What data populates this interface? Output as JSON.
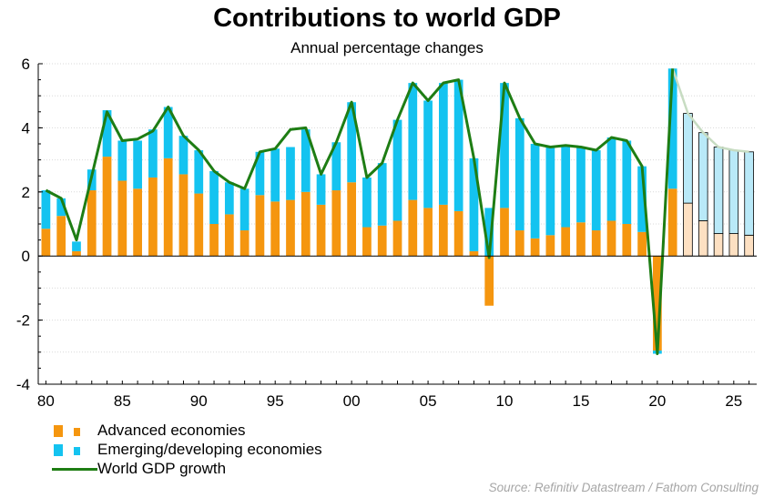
{
  "chart_data": {
    "type": "bar",
    "title": "Contributions to world GDP",
    "subtitle": "Annual percentage changes",
    "xlabel": "",
    "ylabel": "",
    "ylim": [
      -4,
      6
    ],
    "y_ticks": [
      "6",
      "4",
      "2",
      "0",
      "-2",
      "-4"
    ],
    "x_ticks": [
      "80",
      "85",
      "90",
      "95",
      "00",
      "05",
      "10",
      "15",
      "20",
      "25"
    ],
    "x": [
      1980,
      1981,
      1982,
      1983,
      1984,
      1985,
      1986,
      1987,
      1988,
      1989,
      1990,
      1991,
      1992,
      1993,
      1994,
      1995,
      1996,
      1997,
      1998,
      1999,
      2000,
      2001,
      2002,
      2003,
      2004,
      2005,
      2006,
      2007,
      2008,
      2009,
      2010,
      2011,
      2012,
      2013,
      2014,
      2015,
      2016,
      2017,
      2018,
      2019,
      2020,
      2021,
      2022,
      2023,
      2024,
      2025,
      2026
    ],
    "forecast_from": 2022,
    "stacked": true,
    "grid": true,
    "series": [
      {
        "name": "Advanced economies",
        "color": "#f5960f",
        "forecast_color": "#fde0c2",
        "values": [
          0.85,
          1.25,
          0.15,
          2.05,
          3.1,
          2.35,
          2.1,
          2.45,
          3.05,
          2.55,
          1.95,
          1.0,
          1.3,
          0.8,
          1.9,
          1.7,
          1.75,
          2.0,
          1.6,
          2.05,
          2.3,
          0.9,
          0.95,
          1.1,
          1.75,
          1.5,
          1.6,
          1.4,
          0.15,
          -1.55,
          1.5,
          0.8,
          0.55,
          0.65,
          0.9,
          1.05,
          0.8,
          1.1,
          1.0,
          0.75,
          -2.95,
          2.1,
          1.65,
          1.1,
          0.7,
          0.7,
          0.65
        ]
      },
      {
        "name": "Emerging/developing economies",
        "color": "#14c3f0",
        "forecast_color": "#b9e9f8",
        "values": [
          1.2,
          0.55,
          0.3,
          0.65,
          1.45,
          1.25,
          1.5,
          1.5,
          1.6,
          1.2,
          1.35,
          1.65,
          1.0,
          1.3,
          1.35,
          1.65,
          1.65,
          1.95,
          0.95,
          1.5,
          2.5,
          1.55,
          1.95,
          3.15,
          3.65,
          3.35,
          3.8,
          4.1,
          2.9,
          1.5,
          3.9,
          3.5,
          2.95,
          2.75,
          2.55,
          2.35,
          2.5,
          2.6,
          2.6,
          2.05,
          -0.1,
          3.75,
          2.8,
          2.75,
          2.7,
          2.6,
          2.6
        ]
      },
      {
        "name": "World GDP growth",
        "type": "line",
        "color": "#1e7d14",
        "forecast_color": "#c7dcc2",
        "values": [
          2.05,
          1.8,
          0.5,
          2.5,
          4.5,
          3.6,
          3.65,
          3.9,
          4.65,
          3.75,
          3.3,
          2.65,
          2.3,
          2.1,
          3.25,
          3.35,
          3.95,
          4.0,
          2.55,
          3.55,
          4.8,
          2.45,
          2.9,
          4.25,
          5.4,
          4.85,
          5.4,
          5.5,
          3.05,
          -0.05,
          5.4,
          4.3,
          3.5,
          3.4,
          3.45,
          3.4,
          3.3,
          3.7,
          3.6,
          2.8,
          -3.05,
          5.85,
          4.45,
          3.85,
          3.4,
          3.3,
          3.25
        ]
      }
    ],
    "legend": "bottom-left"
  },
  "source": "Source: Refinitiv Datastream / Fathom Consulting"
}
